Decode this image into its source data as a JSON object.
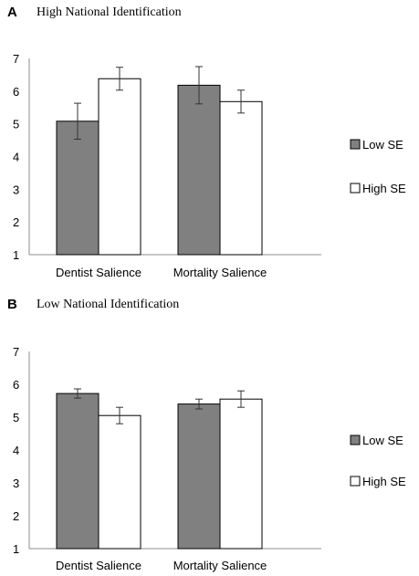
{
  "chart_data": [
    {
      "type": "bar",
      "panel_label": "A",
      "title": "High National Identification",
      "categories": [
        "Dentist Salience",
        "Mortality Salience"
      ],
      "ylim": [
        1,
        7
      ],
      "yticks": [
        "1",
        "2",
        "3",
        "4",
        "5",
        "6",
        "7"
      ],
      "grid": false,
      "legend_position": "right",
      "series": [
        {
          "name": "Low SE",
          "color": "#808080",
          "values": [
            5.08,
            6.18
          ],
          "err": [
            0.55,
            0.57
          ]
        },
        {
          "name": "High SE",
          "color": "#ffffff",
          "values": [
            6.38,
            5.68
          ],
          "err": [
            0.35,
            0.35
          ]
        }
      ]
    },
    {
      "type": "bar",
      "panel_label": "B",
      "title": "Low National Identification",
      "categories": [
        "Dentist Salience",
        "Mortality Salience"
      ],
      "ylim": [
        1,
        7
      ],
      "yticks": [
        "1",
        "2",
        "3",
        "4",
        "5",
        "6",
        "7"
      ],
      "grid": false,
      "legend_position": "right",
      "series": [
        {
          "name": "Low SE",
          "color": "#808080",
          "values": [
            5.72,
            5.4
          ],
          "err": [
            0.14,
            0.15
          ]
        },
        {
          "name": "High SE",
          "color": "#ffffff",
          "values": [
            5.05,
            5.55
          ],
          "err": [
            0.25,
            0.25
          ]
        }
      ]
    }
  ]
}
